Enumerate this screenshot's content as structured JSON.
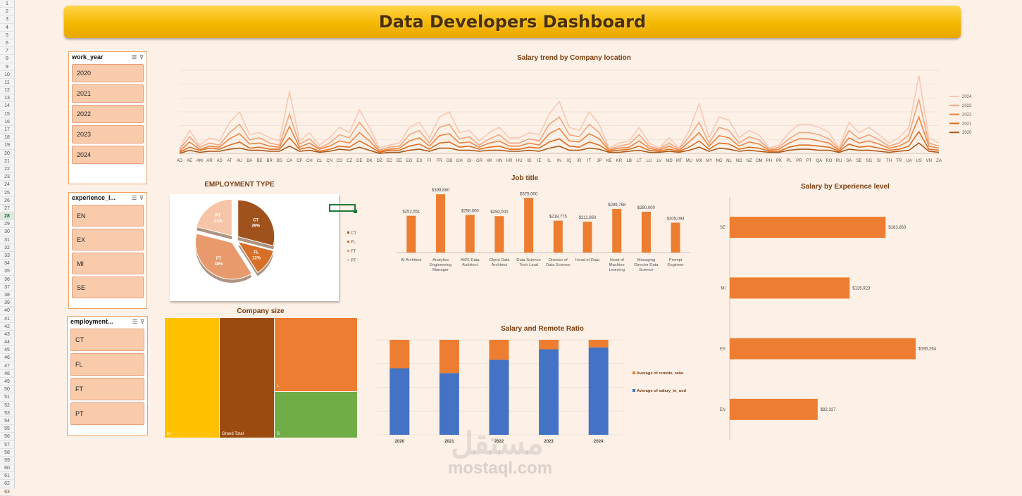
{
  "dashboard_title": "Data Developers Dashboard",
  "row_numbers": [
    "1",
    "2",
    "3",
    "4",
    "5",
    "6",
    "7",
    "8",
    "9",
    "10",
    "11",
    "12",
    "13",
    "14",
    "15",
    "16",
    "17",
    "18",
    "19",
    "20",
    "21",
    "22",
    "23",
    "24",
    "25",
    "26",
    "27",
    "28",
    "29",
    "30",
    "31",
    "32",
    "33",
    "34",
    "35",
    "36",
    "37",
    "38",
    "39",
    "40",
    "41",
    "42",
    "43",
    "44",
    "45",
    "46",
    "47",
    "48",
    "49",
    "50",
    "51",
    "52",
    "53",
    "54",
    "55",
    "56",
    "57",
    "58",
    "59",
    "60",
    "61",
    "62",
    "63"
  ],
  "selected_row": "28",
  "slicers": [
    {
      "title": "work_year",
      "items": [
        "2020",
        "2021",
        "2022",
        "2023",
        "2024"
      ]
    },
    {
      "title": "experience_l...",
      "items": [
        "EN",
        "EX",
        "MI",
        "SE"
      ]
    },
    {
      "title": "employment...",
      "items": [
        "CT",
        "FL",
        "FT",
        "PT"
      ]
    }
  ],
  "colors": {
    "accent": "#ed7d31",
    "dark": "#9c4a10",
    "blue": "#4472c4",
    "green": "#70ad47",
    "gold": "#ffc000"
  },
  "watermark": {
    "arabic": "مستقل",
    "latin": "mostaql.com"
  },
  "chart_data": [
    {
      "type": "line",
      "title": "Salary trend by Company location",
      "categories": [
        "AD",
        "AE",
        "AM",
        "AR",
        "AS",
        "AT",
        "AU",
        "BA",
        "BE",
        "BR",
        "BS",
        "CA",
        "CF",
        "CH",
        "CL",
        "CN",
        "CO",
        "CZ",
        "DE",
        "DK",
        "DZ",
        "EC",
        "EE",
        "EG",
        "ES",
        "FI",
        "FR",
        "GB",
        "GH",
        "GI",
        "GR",
        "HK",
        "HN",
        "HR",
        "HU",
        "ID",
        "IE",
        "IL",
        "IN",
        "IQ",
        "IR",
        "IT",
        "JP",
        "KE",
        "KR",
        "LB",
        "LT",
        "LU",
        "LV",
        "MD",
        "MT",
        "MU",
        "MX",
        "MY",
        "NG",
        "NL",
        "NO",
        "NZ",
        "OM",
        "PH",
        "PK",
        "PL",
        "PR",
        "PT",
        "QA",
        "RO",
        "RU",
        "SA",
        "SE",
        "SG",
        "SI",
        "TH",
        "TR",
        "UA",
        "US",
        "VN",
        "ZA"
      ],
      "series": [
        {
          "name": "2024",
          "color": "#f8c8b2",
          "values": [
            5,
            22,
            8,
            15,
            12,
            30,
            40,
            18,
            20,
            15,
            12,
            60,
            12,
            20,
            8,
            15,
            25,
            20,
            42,
            25,
            5,
            8,
            10,
            25,
            30,
            15,
            35,
            40,
            20,
            22,
            12,
            20,
            25,
            15,
            15,
            20,
            18,
            38,
            50,
            25,
            22,
            40,
            28,
            5,
            10,
            12,
            25,
            10,
            5,
            15,
            5,
            22,
            48,
            15,
            35,
            32,
            15,
            22,
            18,
            5,
            8,
            20,
            28,
            28,
            25,
            20,
            5,
            30,
            20,
            25,
            18,
            10,
            15,
            25,
            75,
            15,
            10
          ]
        },
        {
          "name": "2023",
          "color": "#f4a57c",
          "values": [
            4,
            16,
            6,
            10,
            8,
            20,
            28,
            13,
            15,
            10,
            8,
            38,
            9,
            14,
            5,
            10,
            18,
            15,
            30,
            18,
            3,
            6,
            7,
            18,
            22,
            10,
            25,
            28,
            14,
            16,
            8,
            14,
            18,
            10,
            10,
            14,
            12,
            28,
            35,
            18,
            16,
            28,
            20,
            4,
            7,
            9,
            18,
            7,
            4,
            10,
            4,
            16,
            30,
            10,
            25,
            22,
            10,
            16,
            13,
            4,
            6,
            14,
            20,
            20,
            18,
            14,
            4,
            22,
            14,
            18,
            13,
            7,
            10,
            18,
            52,
            10,
            7
          ]
        },
        {
          "name": "2022",
          "color": "#ee8442",
          "values": [
            2,
            11,
            4,
            7,
            6,
            14,
            19,
            9,
            10,
            7,
            6,
            26,
            6,
            10,
            4,
            7,
            12,
            10,
            20,
            12,
            2,
            4,
            5,
            12,
            15,
            7,
            17,
            19,
            10,
            11,
            6,
            10,
            12,
            7,
            7,
            10,
            8,
            19,
            24,
            12,
            11,
            19,
            14,
            3,
            5,
            6,
            12,
            5,
            3,
            7,
            3,
            11,
            20,
            7,
            17,
            15,
            7,
            11,
            9,
            3,
            4,
            10,
            14,
            14,
            12,
            10,
            3,
            15,
            10,
            12,
            9,
            5,
            7,
            12,
            35,
            7,
            5
          ]
        },
        {
          "name": "2021",
          "color": "#dd6c1f",
          "values": [
            1,
            6,
            3,
            5,
            4,
            8,
            11,
            5,
            6,
            4,
            4,
            15,
            4,
            6,
            2,
            4,
            7,
            6,
            12,
            7,
            1,
            3,
            3,
            7,
            9,
            4,
            10,
            11,
            6,
            7,
            4,
            6,
            7,
            4,
            4,
            6,
            5,
            11,
            14,
            7,
            6,
            11,
            8,
            2,
            3,
            4,
            7,
            3,
            2,
            4,
            2,
            6,
            12,
            4,
            10,
            9,
            4,
            6,
            5,
            2,
            2,
            6,
            8,
            8,
            7,
            6,
            2,
            9,
            6,
            7,
            5,
            3,
            4,
            7,
            21,
            4,
            3
          ]
        },
        {
          "name": "2020",
          "color": "#a8581a",
          "values": [
            0,
            3,
            1,
            2,
            2,
            4,
            5,
            3,
            3,
            2,
            2,
            7,
            2,
            3,
            1,
            2,
            4,
            3,
            6,
            3,
            0,
            1,
            1,
            3,
            4,
            2,
            5,
            5,
            3,
            3,
            2,
            3,
            3,
            2,
            2,
            3,
            2,
            5,
            7,
            3,
            3,
            5,
            4,
            1,
            1,
            2,
            3,
            1,
            1,
            2,
            1,
            3,
            6,
            2,
            5,
            4,
            2,
            3,
            2,
            1,
            1,
            3,
            4,
            4,
            3,
            3,
            1,
            4,
            3,
            3,
            2,
            1,
            2,
            3,
            10,
            2,
            1
          ]
        }
      ]
    },
    {
      "type": "pie",
      "title": "EMPLOYMENT TYPE",
      "slices": [
        {
          "label": "CT",
          "percent": 29,
          "display": "29%",
          "color": "#a0521c"
        },
        {
          "label": "FL",
          "percent": 12,
          "display": "12%",
          "color": "#d86f28"
        },
        {
          "label": "FT",
          "percent": 38,
          "display": "38%",
          "color": "#e99a6c"
        },
        {
          "label": "PT",
          "percent": 21,
          "display": "21%",
          "color": "#f6c5a8"
        }
      ],
      "legend": [
        "CT",
        "FL",
        "FT",
        "PT"
      ]
    },
    {
      "type": "bar",
      "title": "Job title",
      "categories": [
        [
          "AI Architect"
        ],
        [
          "Analytics",
          "Engineering",
          "Manager"
        ],
        [
          "AWS Data",
          "Architect"
        ],
        [
          "Cloud Data",
          "Architect"
        ],
        [
          "Data Science",
          "Tech Lead"
        ],
        [
          "Director of",
          "Data Science"
        ],
        [
          "Head of Data"
        ],
        [
          "Head of",
          "Machine",
          "Learning"
        ],
        [
          "Managing",
          "Director Data",
          "Science"
        ],
        [
          "Prompt",
          "Engineer"
        ]
      ],
      "values": [
        252551,
        399880,
        258000,
        250000,
        375000,
        218775,
        211860,
        299758,
        280000,
        205094
      ],
      "labels": [
        "$252,551",
        "$399,880",
        "$258,000",
        "$250,000",
        "$375,000",
        "$218,775",
        "$211,860",
        "$299,758",
        "$280,000",
        "$205,094"
      ],
      "ylim": [
        0,
        420000
      ]
    },
    {
      "type": "bar",
      "orientation": "horizontal",
      "title": "Salary by Experience level",
      "categories": [
        "SE",
        "MI",
        "EX",
        "EN"
      ],
      "values": [
        163663,
        125923,
        195264,
        92327
      ],
      "labels": [
        "$163,663",
        "$125,923",
        "$195,264",
        "$92,327"
      ],
      "xlim": [
        0,
        210000
      ]
    },
    {
      "type": "treemap",
      "title": "Company size",
      "cells": [
        {
          "label": "M",
          "color": "#ffc000"
        },
        {
          "label": "Grand Total",
          "color": "#9c4a10"
        },
        {
          "label": "L",
          "color": "#ed7d31"
        },
        {
          "label": "S",
          "color": "#70ad47"
        }
      ]
    },
    {
      "type": "stacked-bar",
      "title": "Salary and Remote Ratio",
      "categories": [
        "2020",
        "2021",
        "2022",
        "2023",
        "2024"
      ],
      "series": [
        {
          "name": "Average of remote_ratio",
          "color": "#ed7d31",
          "values": [
            30,
            35,
            21,
            10,
            8
          ]
        },
        {
          "name": "Average of salary_in_usd",
          "color": "#4472c4",
          "values": [
            70,
            65,
            79,
            90,
            92
          ]
        }
      ]
    }
  ]
}
